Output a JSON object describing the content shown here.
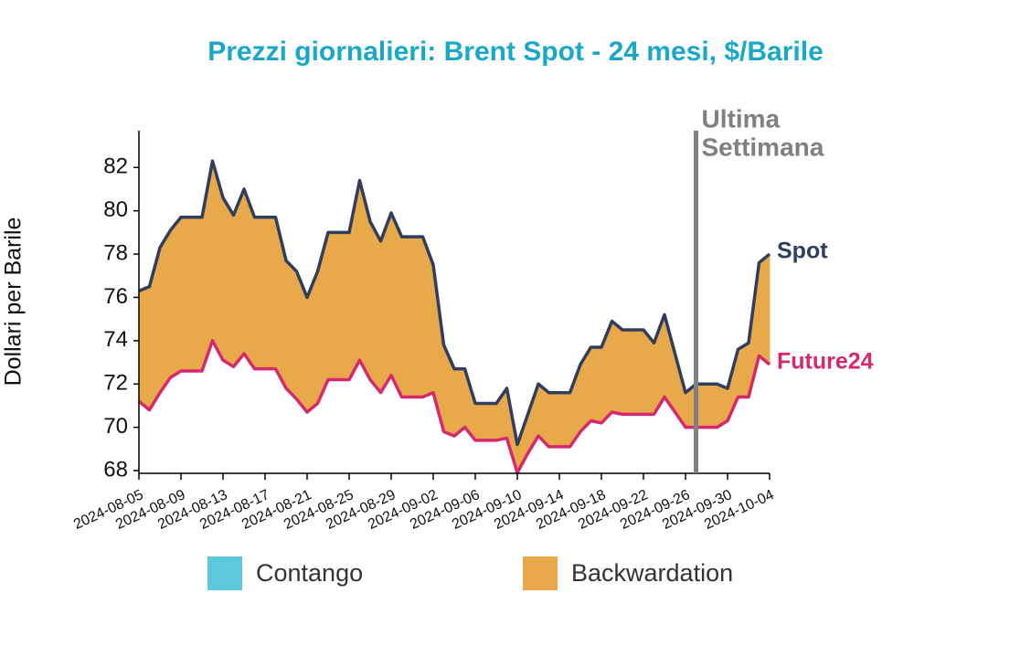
{
  "chart_data": {
    "type": "line",
    "title": "Prezzi giornalieri: Brent Spot - 24 mesi, $/Barile",
    "y_label": "Dollari per Barile",
    "x": [
      "2024-08-05",
      "2024-08-06",
      "2024-08-07",
      "2024-08-08",
      "2024-08-09",
      "2024-08-10",
      "2024-08-11",
      "2024-08-12",
      "2024-08-13",
      "2024-08-14",
      "2024-08-15",
      "2024-08-16",
      "2024-08-17",
      "2024-08-18",
      "2024-08-19",
      "2024-08-20",
      "2024-08-21",
      "2024-08-22",
      "2024-08-23",
      "2024-08-24",
      "2024-08-25",
      "2024-08-26",
      "2024-08-27",
      "2024-08-28",
      "2024-08-29",
      "2024-08-30",
      "2024-08-31",
      "2024-09-01",
      "2024-09-02",
      "2024-09-03",
      "2024-09-04",
      "2024-09-05",
      "2024-09-06",
      "2024-09-07",
      "2024-09-08",
      "2024-09-09",
      "2024-09-10",
      "2024-09-11",
      "2024-09-12",
      "2024-09-13",
      "2024-09-14",
      "2024-09-15",
      "2024-09-16",
      "2024-09-17",
      "2024-09-18",
      "2024-09-19",
      "2024-09-20",
      "2024-09-21",
      "2024-09-22",
      "2024-09-23",
      "2024-09-24",
      "2024-09-25",
      "2024-09-26",
      "2024-09-27",
      "2024-09-28",
      "2024-09-29",
      "2024-09-30",
      "2024-10-01",
      "2024-10-02",
      "2024-10-03",
      "2024-10-04"
    ],
    "series": [
      {
        "name": "Spot",
        "color": "#2f3e5e",
        "values": [
          76.3,
          76.5,
          78.3,
          79.1,
          79.7,
          79.7,
          79.7,
          82.3,
          80.6,
          79.8,
          81.0,
          79.7,
          79.7,
          79.7,
          77.7,
          77.2,
          76.0,
          77.2,
          79.0,
          79.0,
          79.0,
          81.4,
          79.5,
          78.6,
          79.9,
          78.8,
          78.8,
          78.8,
          77.5,
          73.8,
          72.7,
          72.7,
          71.1,
          71.1,
          71.1,
          71.8,
          69.2,
          70.6,
          72.0,
          71.6,
          71.6,
          71.6,
          72.9,
          73.7,
          73.7,
          74.9,
          74.5,
          74.5,
          74.5,
          73.9,
          75.2,
          73.4,
          71.6,
          72.0,
          72.0,
          72.0,
          71.8,
          73.6,
          73.9,
          77.6,
          78.0
        ]
      },
      {
        "name": "Future24",
        "color": "#d6286f",
        "values": [
          71.2,
          70.8,
          71.6,
          72.3,
          72.6,
          72.6,
          72.6,
          74.0,
          73.1,
          72.8,
          73.4,
          72.7,
          72.7,
          72.7,
          71.8,
          71.3,
          70.7,
          71.1,
          72.2,
          72.2,
          72.2,
          73.1,
          72.2,
          71.6,
          72.4,
          71.4,
          71.4,
          71.4,
          71.6,
          69.8,
          69.6,
          70.0,
          69.4,
          69.4,
          69.4,
          69.5,
          67.9,
          68.8,
          69.6,
          69.1,
          69.1,
          69.1,
          69.8,
          70.3,
          70.2,
          70.7,
          70.6,
          70.6,
          70.6,
          70.6,
          71.4,
          70.7,
          70.0,
          70.0,
          70.0,
          70.0,
          70.3,
          71.4,
          71.4,
          73.3,
          72.9
        ]
      }
    ],
    "fills": [
      {
        "name": "Contango",
        "color": "#5bc8dc"
      },
      {
        "name": "Backwardation",
        "color": "#e8a94a"
      }
    ],
    "xlim": [
      "2024-08-05",
      "2024-10-04"
    ],
    "xticks": [
      "2024-08-05",
      "2024-08-09",
      "2024-08-13",
      "2024-08-17",
      "2024-08-21",
      "2024-08-25",
      "2024-08-29",
      "2024-09-02",
      "2024-09-06",
      "2024-09-10",
      "2024-09-14",
      "2024-09-18",
      "2024-09-22",
      "2024-09-26",
      "2024-09-30",
      "2024-10-04"
    ],
    "ylim": [
      68,
      83.7
    ],
    "yticks": [
      68,
      70,
      72,
      74,
      76,
      78,
      80,
      82
    ],
    "annotation": {
      "lines": [
        "Ultima",
        "Settimana"
      ],
      "x": "2024-09-27",
      "color": "#808080"
    }
  }
}
